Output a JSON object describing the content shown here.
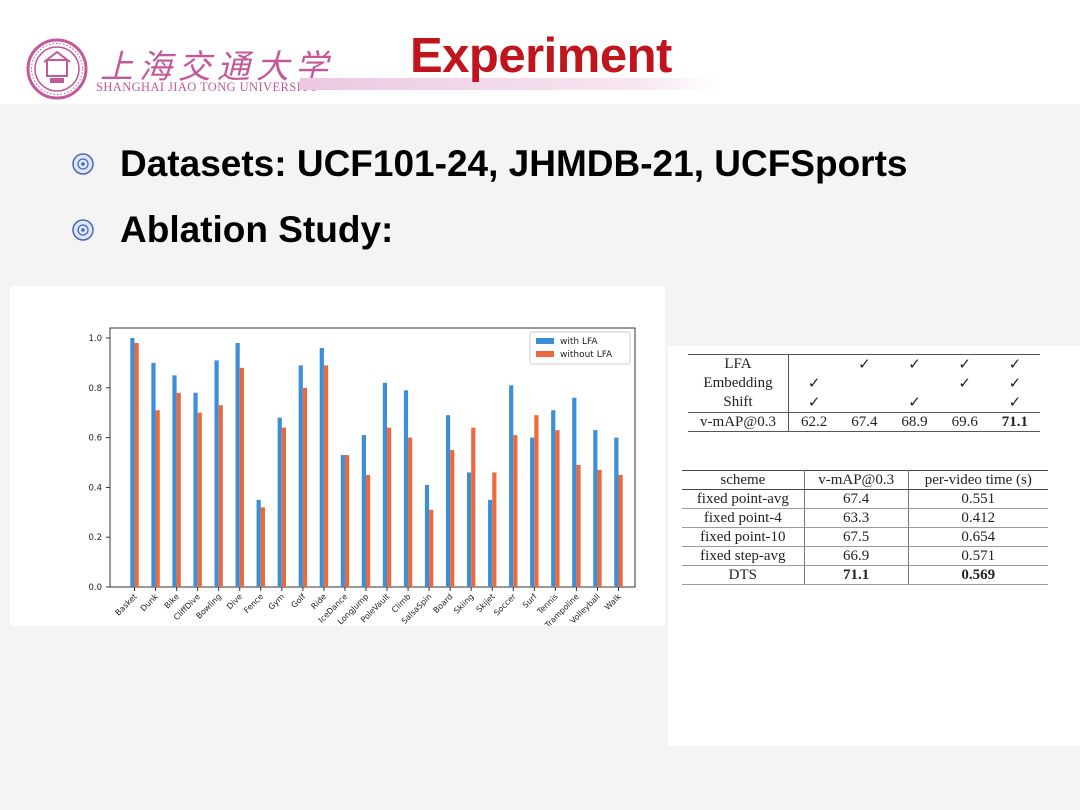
{
  "header": {
    "logo_cn": "上海交通大学",
    "logo_en": "SHANGHAI JIAO TONG UNIVERSITY",
    "title": "Experiment",
    "colors": {
      "title": "#c0151d",
      "logo": "#c3589a"
    }
  },
  "bullets": [
    "Datasets: UCF101-24, JHMDB-21, UCFSports",
    "Ablation Study:"
  ],
  "chart_data": {
    "type": "bar",
    "categories": [
      "Basket",
      "Dunk",
      "Bike",
      "CliffDive",
      "Bowling",
      "Dive",
      "Fence",
      "Gym",
      "Golf",
      "Ride",
      "IceDance",
      "LongJump",
      "PoleVault",
      "Climb",
      "SalsaSpin",
      "Board",
      "Skiing",
      "Skijet",
      "Soccer",
      "Surf",
      "Tennis",
      "Trampoline",
      "Volleyball",
      "Walk"
    ],
    "series": [
      {
        "name": "with LFA",
        "color": "#3c8fd6",
        "values": [
          1.0,
          0.9,
          0.85,
          0.78,
          0.91,
          0.98,
          0.35,
          0.68,
          0.89,
          0.96,
          0.53,
          0.61,
          0.82,
          0.79,
          0.41,
          0.69,
          0.46,
          0.35,
          0.81,
          0.6,
          0.71,
          0.76,
          0.63,
          0.6
        ]
      },
      {
        "name": "without LFA",
        "color": "#ea6a3d",
        "values": [
          0.98,
          0.71,
          0.78,
          0.7,
          0.73,
          0.88,
          0.32,
          0.64,
          0.8,
          0.89,
          0.53,
          0.45,
          0.64,
          0.6,
          0.31,
          0.55,
          0.64,
          0.46,
          0.61,
          0.69,
          0.63,
          0.49,
          0.47,
          0.45
        ]
      }
    ],
    "yticks": [
      "0.0",
      "0.2",
      "0.4",
      "0.6",
      "0.8",
      "1.0"
    ],
    "ylim": [
      0,
      1.0
    ],
    "legend": "top-right",
    "grid": false
  },
  "table1": {
    "rows": [
      {
        "label": "LFA",
        "cells": [
          "",
          "✓",
          "✓",
          "✓",
          "✓"
        ]
      },
      {
        "label": "Embedding",
        "cells": [
          "✓",
          "",
          "",
          "✓",
          "✓"
        ]
      },
      {
        "label": "Shift",
        "cells": [
          "✓",
          "",
          "✓",
          "",
          "✓"
        ]
      }
    ],
    "result": {
      "label": "v-mAP@0.3",
      "cells": [
        "62.2",
        "67.4",
        "68.9",
        "69.6",
        "71.1"
      ]
    }
  },
  "table2": {
    "headers": [
      "scheme",
      "v-mAP@0.3",
      "per-video time (s)"
    ],
    "rows": [
      [
        "fixed point-avg",
        "67.4",
        "0.551"
      ],
      [
        "fixed point-4",
        "63.3",
        "0.412"
      ],
      [
        "fixed point-10",
        "67.5",
        "0.654"
      ],
      [
        "fixed step-avg",
        "66.9",
        "0.571"
      ],
      [
        "DTS",
        "71.1",
        "0.569"
      ]
    ]
  }
}
